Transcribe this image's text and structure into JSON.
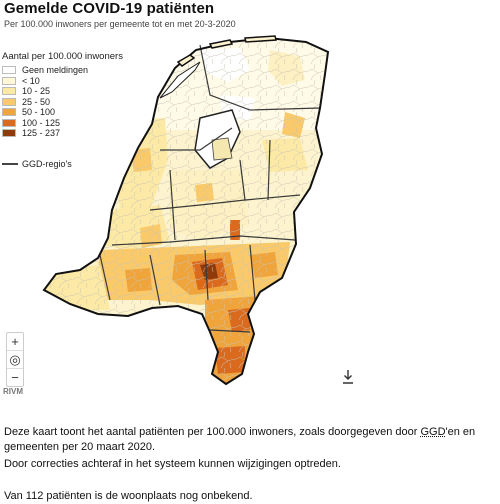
{
  "header": {
    "title": "Gemelde COVID-19 patiënten",
    "subtitle": "Per 100.000 inwoners per gemeente tot en met 20-3-2020"
  },
  "legend": {
    "title": "Aantal per 100.000 inwoners",
    "items": [
      {
        "label": "Geen meldingen",
        "color": "#ffffff"
      },
      {
        "label": "< 10",
        "color": "#fff7d5"
      },
      {
        "label": "10 - 25",
        "color": "#fde9a6"
      },
      {
        "label": "25 - 50",
        "color": "#f9c96a"
      },
      {
        "label": "50 - 100",
        "color": "#efa43c"
      },
      {
        "label": "100 - 125",
        "color": "#d96a1e"
      },
      {
        "label": "125 - 237",
        "color": "#8e3a0b"
      }
    ],
    "ggd_label": "GGD-regio's"
  },
  "zoom": {
    "plus": "+",
    "locate": "◎",
    "minus": "−"
  },
  "credit": "RIVM",
  "description": {
    "line1_a": "Deze kaart toont het aantal patiënten per 100.000 inwoners, zoals doorgegeven door ",
    "line1_ggd": "GGD",
    "line1_b": "'en en gemeenten per 20 maart 2020.",
    "line2": "Door correcties achteraf in het systeem kunnen wijzigingen optreden.",
    "line3": "Van 112 patiënten is de woonplaats nog onbekend."
  },
  "icons": {
    "download": "download-icon",
    "locate": "locate-icon"
  }
}
